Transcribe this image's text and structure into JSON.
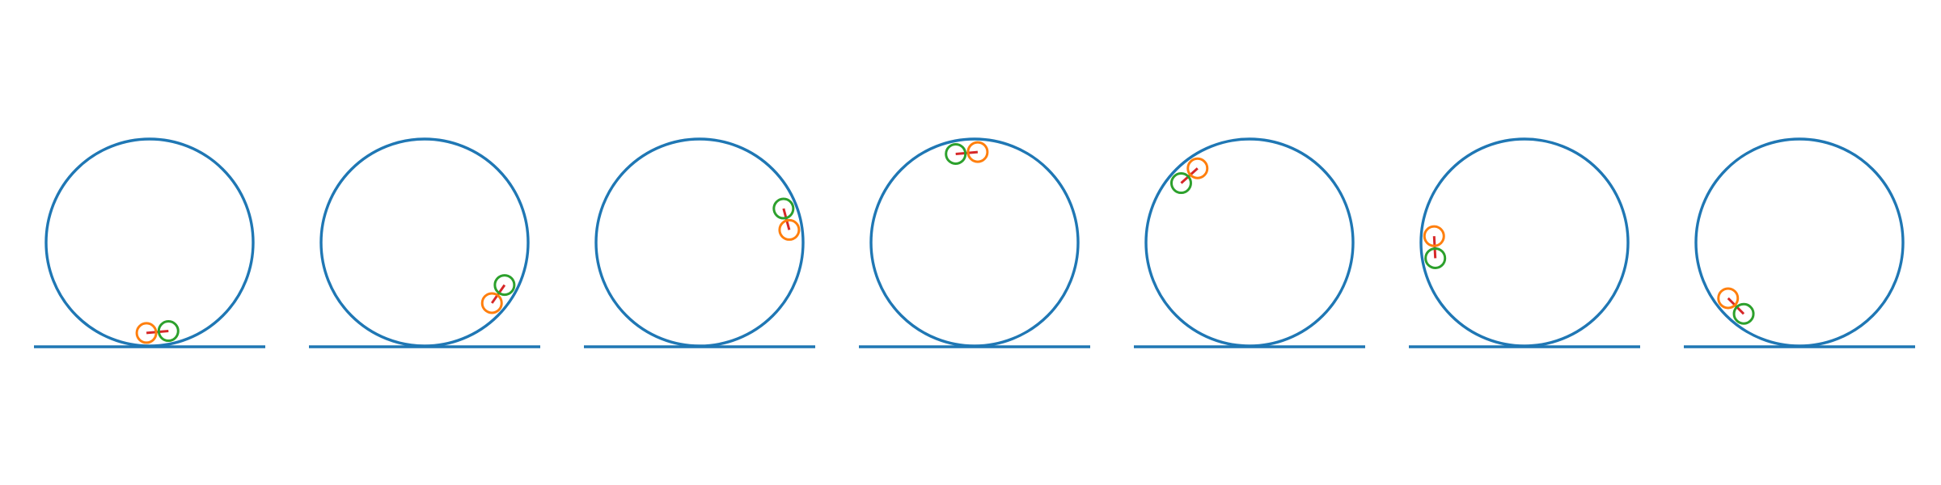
{
  "figure": {
    "type": "diagram",
    "colors": {
      "track": "#1f77b4",
      "link": "#d62728",
      "mass_a": "#ff7f0e",
      "mass_b": "#2ca02c",
      "background": "#ffffff"
    },
    "frames": [
      {
        "index": 1,
        "center_angle_deg": 275
      },
      {
        "index": 2,
        "center_angle_deg": 325
      },
      {
        "index": 3,
        "center_angle_deg": 15
      },
      {
        "index": 4,
        "center_angle_deg": 95
      },
      {
        "index": 5,
        "center_angle_deg": 132
      },
      {
        "index": 6,
        "center_angle_deg": 183
      },
      {
        "index": 7,
        "center_angle_deg": 225
      }
    ],
    "pendulum": {
      "mass_a_offset_deg": -7,
      "mass_b_offset_deg": 7
    }
  }
}
